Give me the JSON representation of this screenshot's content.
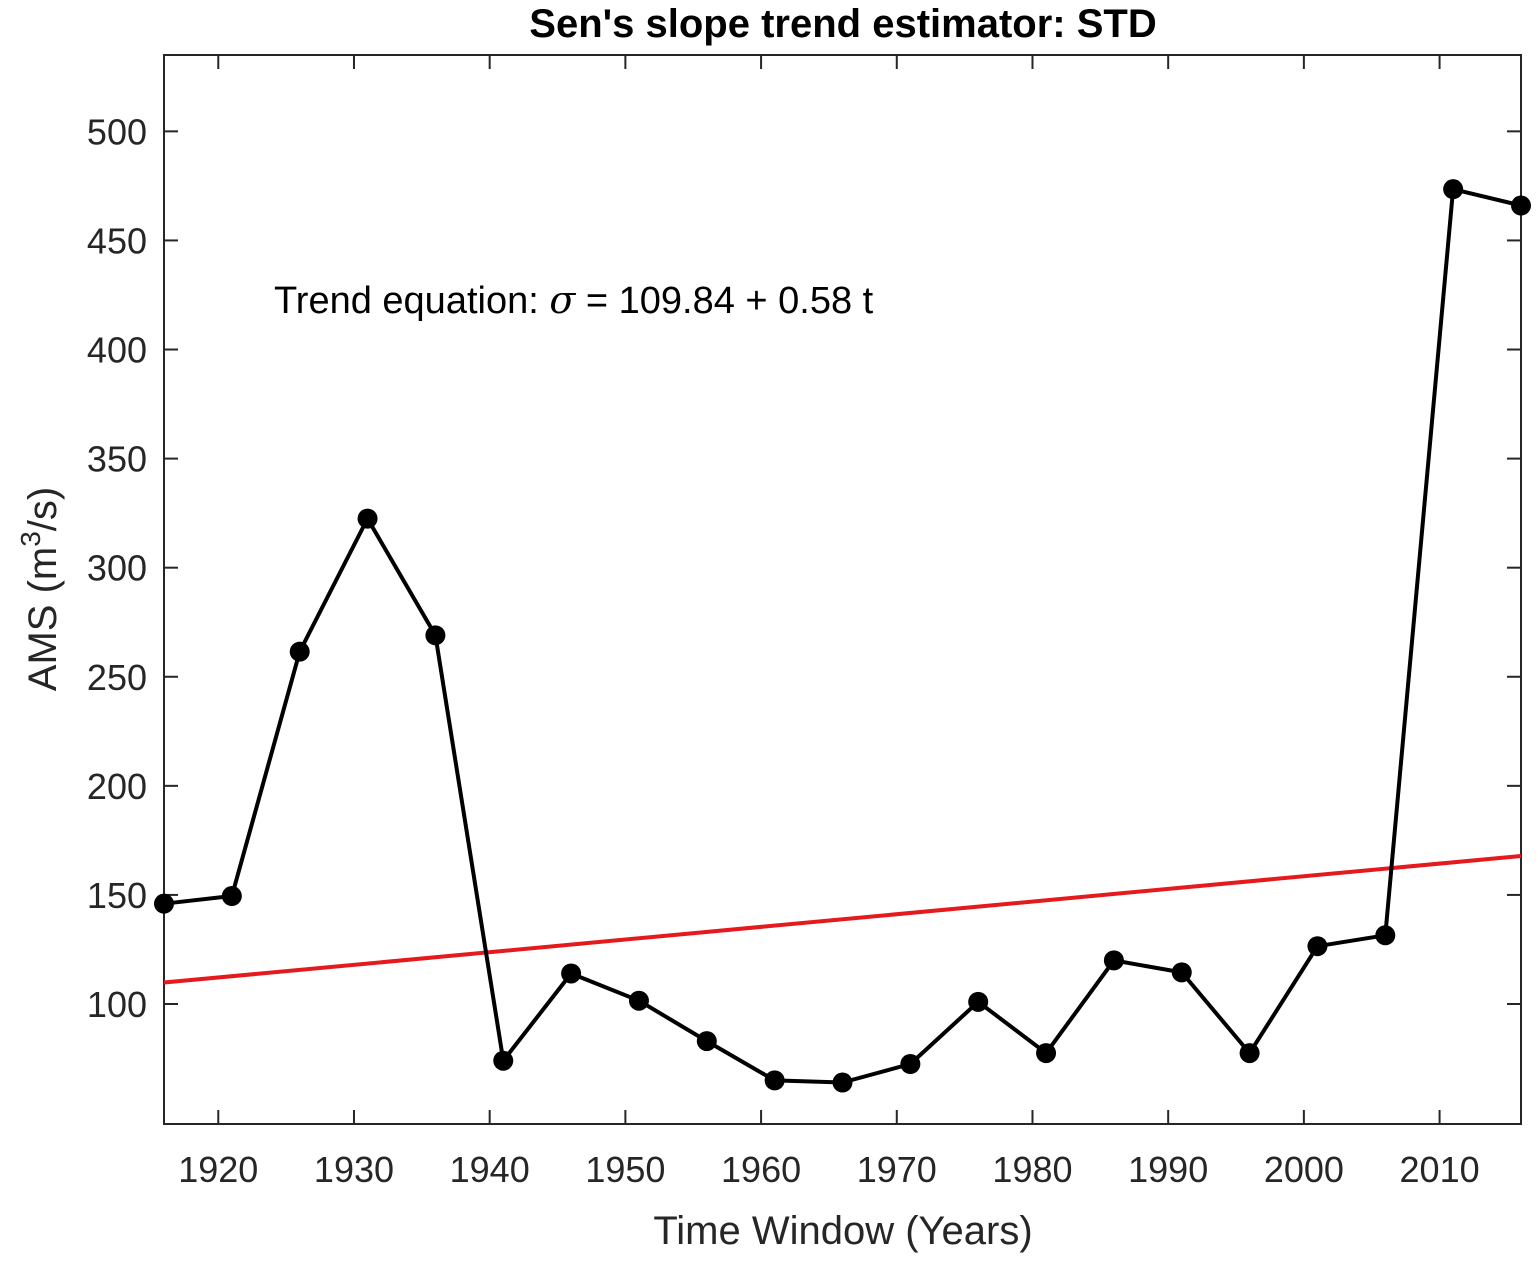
{
  "chart_data": {
    "type": "line",
    "title": "Sen's slope trend estimator: STD",
    "xlabel": "Time Window (Years)",
    "ylabel": "AMS (m",
    "ylabel_sup": "3",
    "ylabel_end": "/s)",
    "xlim": [
      1916,
      2016
    ],
    "ylim": [
      45,
      535
    ],
    "x_ticks": [
      1920,
      1930,
      1940,
      1950,
      1960,
      1970,
      1980,
      1990,
      2000,
      2010
    ],
    "y_ticks": [
      100,
      150,
      200,
      250,
      300,
      350,
      400,
      450,
      500
    ],
    "grid": false,
    "series": [
      {
        "color": "#000000",
        "marker": "circle",
        "x": [
          1916,
          1921,
          1926,
          1931,
          1936,
          1941,
          1946,
          1951,
          1956,
          1961,
          1966,
          1971,
          1976,
          1981,
          1986,
          1991,
          1996,
          2001,
          2006,
          2011,
          2016
        ],
        "y": [
          146,
          149.5,
          261.5,
          322.5,
          269,
          74,
          114,
          101.5,
          83,
          65,
          64,
          72.5,
          101,
          77.5,
          120,
          114.5,
          77.5,
          126.5,
          131.5,
          473.5,
          466
        ]
      }
    ],
    "trend_line": {
      "color": "#e41a1c",
      "intercept": 109.84,
      "slope": 0.58,
      "x_start": 1916,
      "x_end": 2016
    },
    "annotation": {
      "prefix": "Trend equation: ",
      "symbol": "σ",
      "suffix": " = 109.84 + 0.58 t"
    }
  }
}
